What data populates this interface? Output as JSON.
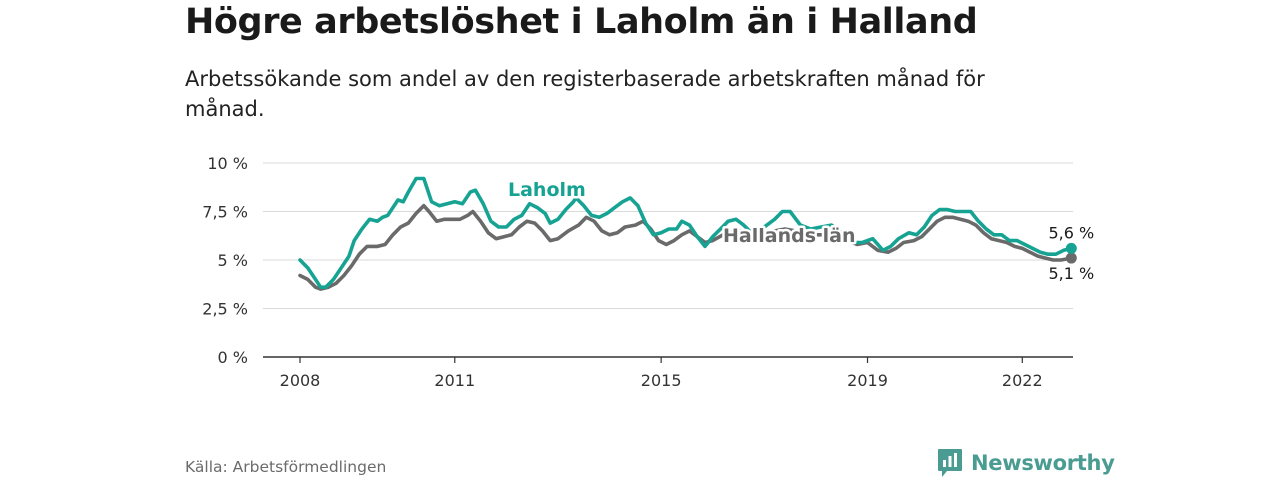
{
  "title": "Högre arbetslöshet i Laholm än i Halland",
  "subtitle": "Arbetssökande som andel av den registerbaserade arbetskraften månad för månad.",
  "source": "Källa: Arbetsförmedlingen",
  "brand": "Newsworthy",
  "colors": {
    "laholm": "#17a393",
    "halland": "#6b6a6b",
    "grid": "#d9d9d9",
    "axis": "#333333",
    "brand": "#4a9b91"
  },
  "chart_data": {
    "type": "line",
    "title": "Högre arbetslöshet i Laholm än i Halland",
    "xlabel": "",
    "ylabel": "",
    "xlim": [
      2008,
      2023.7
    ],
    "ylim": [
      0,
      10
    ],
    "y_ticks": [
      0,
      2.5,
      5,
      7.5,
      10
    ],
    "y_tick_labels": [
      "0 %",
      "2,5 %",
      "5 %",
      "7,5 %",
      "10 %"
    ],
    "x_ticks": [
      2008,
      2011,
      2015,
      2019,
      2022
    ],
    "x_tick_labels": [
      "2008",
      "2011",
      "2015",
      "2019",
      "2022"
    ],
    "grid": true,
    "legend": "inline labels",
    "series": [
      {
        "name": "Laholm",
        "color": "#17a393",
        "points": [
          [
            2008.0,
            5.0
          ],
          [
            2008.15,
            4.6
          ],
          [
            2008.3,
            4.0
          ],
          [
            2008.4,
            3.6
          ],
          [
            2008.5,
            3.6
          ],
          [
            2008.65,
            4.0
          ],
          [
            2008.8,
            4.6
          ],
          [
            2008.95,
            5.2
          ],
          [
            2009.05,
            6.0
          ],
          [
            2009.2,
            6.6
          ],
          [
            2009.35,
            7.1
          ],
          [
            2009.5,
            7.0
          ],
          [
            2009.6,
            7.2
          ],
          [
            2009.7,
            7.3
          ],
          [
            2009.8,
            7.7
          ],
          [
            2009.9,
            8.1
          ],
          [
            2010.0,
            8.0
          ],
          [
            2010.1,
            8.5
          ],
          [
            2010.25,
            9.2
          ],
          [
            2010.4,
            9.2
          ],
          [
            2010.55,
            8.0
          ],
          [
            2010.7,
            7.8
          ],
          [
            2010.85,
            7.9
          ],
          [
            2011.0,
            8.0
          ],
          [
            2011.15,
            7.9
          ],
          [
            2011.3,
            8.5
          ],
          [
            2011.4,
            8.6
          ],
          [
            2011.55,
            7.9
          ],
          [
            2011.7,
            7.0
          ],
          [
            2011.85,
            6.7
          ],
          [
            2012.0,
            6.7
          ],
          [
            2012.15,
            7.1
          ],
          [
            2012.3,
            7.3
          ],
          [
            2012.45,
            7.9
          ],
          [
            2012.6,
            7.7
          ],
          [
            2012.75,
            7.4
          ],
          [
            2012.85,
            6.9
          ],
          [
            2013.0,
            7.1
          ],
          [
            2013.15,
            7.6
          ],
          [
            2013.3,
            8.0
          ],
          [
            2013.35,
            8.2
          ],
          [
            2013.5,
            7.8
          ],
          [
            2013.65,
            7.3
          ],
          [
            2013.8,
            7.2
          ],
          [
            2013.95,
            7.4
          ],
          [
            2014.1,
            7.7
          ],
          [
            2014.25,
            8.0
          ],
          [
            2014.4,
            8.2
          ],
          [
            2014.55,
            7.8
          ],
          [
            2014.7,
            6.9
          ],
          [
            2014.85,
            6.3
          ],
          [
            2015.0,
            6.4
          ],
          [
            2015.15,
            6.6
          ],
          [
            2015.3,
            6.6
          ],
          [
            2015.4,
            7.0
          ],
          [
            2015.55,
            6.8
          ],
          [
            2015.7,
            6.2
          ],
          [
            2015.85,
            5.7
          ],
          [
            2016.0,
            6.2
          ],
          [
            2016.15,
            6.6
          ],
          [
            2016.3,
            7.0
          ],
          [
            2016.45,
            7.1
          ],
          [
            2016.6,
            6.8
          ],
          [
            2016.75,
            6.4
          ],
          [
            2016.9,
            6.5
          ],
          [
            2017.05,
            6.8
          ],
          [
            2017.2,
            7.1
          ],
          [
            2017.35,
            7.5
          ],
          [
            2017.5,
            7.5
          ],
          [
            2017.7,
            6.8
          ],
          [
            2017.9,
            6.6
          ],
          [
            2018.1,
            6.7
          ],
          [
            2018.3,
            6.8
          ],
          [
            2018.5,
            6.4
          ],
          [
            2018.7,
            5.9
          ],
          [
            2018.9,
            5.9
          ],
          [
            2019.1,
            6.1
          ],
          [
            2019.3,
            5.5
          ],
          [
            2019.45,
            5.7
          ],
          [
            2019.6,
            6.1
          ],
          [
            2019.8,
            6.4
          ],
          [
            2019.95,
            6.3
          ],
          [
            2020.1,
            6.7
          ],
          [
            2020.25,
            7.3
          ],
          [
            2020.4,
            7.6
          ],
          [
            2020.55,
            7.6
          ],
          [
            2020.7,
            7.5
          ],
          [
            2020.85,
            7.5
          ],
          [
            2021.0,
            7.5
          ],
          [
            2021.15,
            7.0
          ],
          [
            2021.3,
            6.6
          ],
          [
            2021.45,
            6.3
          ],
          [
            2021.6,
            6.3
          ],
          [
            2021.75,
            6.0
          ],
          [
            2021.9,
            6.0
          ],
          [
            2022.05,
            5.8
          ],
          [
            2022.2,
            5.6
          ],
          [
            2022.35,
            5.4
          ],
          [
            2022.5,
            5.3
          ],
          [
            2022.65,
            5.3
          ],
          [
            2022.8,
            5.5
          ],
          [
            2022.95,
            5.6
          ]
        ],
        "end_value": 5.6,
        "end_label": "5,6 %"
      },
      {
        "name": "Hallands län",
        "color": "#6b6a6b",
        "points": [
          [
            2008.0,
            4.2
          ],
          [
            2008.15,
            4.0
          ],
          [
            2008.3,
            3.6
          ],
          [
            2008.4,
            3.5
          ],
          [
            2008.55,
            3.6
          ],
          [
            2008.7,
            3.8
          ],
          [
            2008.85,
            4.2
          ],
          [
            2009.0,
            4.7
          ],
          [
            2009.15,
            5.3
          ],
          [
            2009.3,
            5.7
          ],
          [
            2009.5,
            5.7
          ],
          [
            2009.65,
            5.8
          ],
          [
            2009.8,
            6.3
          ],
          [
            2009.95,
            6.7
          ],
          [
            2010.1,
            6.9
          ],
          [
            2010.25,
            7.4
          ],
          [
            2010.4,
            7.8
          ],
          [
            2010.5,
            7.5
          ],
          [
            2010.65,
            7.0
          ],
          [
            2010.8,
            7.1
          ],
          [
            2010.95,
            7.1
          ],
          [
            2011.1,
            7.1
          ],
          [
            2011.25,
            7.3
          ],
          [
            2011.35,
            7.5
          ],
          [
            2011.5,
            7.0
          ],
          [
            2011.65,
            6.4
          ],
          [
            2011.8,
            6.1
          ],
          [
            2011.95,
            6.2
          ],
          [
            2012.1,
            6.3
          ],
          [
            2012.25,
            6.7
          ],
          [
            2012.4,
            7.0
          ],
          [
            2012.55,
            6.9
          ],
          [
            2012.7,
            6.5
          ],
          [
            2012.85,
            6.0
          ],
          [
            2013.0,
            6.1
          ],
          [
            2013.2,
            6.5
          ],
          [
            2013.4,
            6.8
          ],
          [
            2013.55,
            7.2
          ],
          [
            2013.7,
            7.0
          ],
          [
            2013.85,
            6.5
          ],
          [
            2014.0,
            6.3
          ],
          [
            2014.15,
            6.4
          ],
          [
            2014.3,
            6.7
          ],
          [
            2014.5,
            6.8
          ],
          [
            2014.65,
            7.0
          ],
          [
            2014.8,
            6.6
          ],
          [
            2014.95,
            6.0
          ],
          [
            2015.1,
            5.8
          ],
          [
            2015.25,
            6.0
          ],
          [
            2015.4,
            6.3
          ],
          [
            2015.55,
            6.5
          ],
          [
            2015.7,
            6.2
          ],
          [
            2015.85,
            5.9
          ],
          [
            2016.0,
            6.0
          ],
          [
            2016.2,
            6.3
          ],
          [
            2016.4,
            6.5
          ],
          [
            2016.55,
            6.5
          ],
          [
            2016.7,
            6.2
          ],
          [
            2016.85,
            6.0
          ],
          [
            2017.0,
            6.1
          ],
          [
            2017.2,
            6.5
          ],
          [
            2017.4,
            6.6
          ],
          [
            2017.6,
            6.5
          ],
          [
            2017.8,
            6.3
          ],
          [
            2018.0,
            6.3
          ],
          [
            2018.2,
            6.3
          ],
          [
            2018.4,
            6.2
          ],
          [
            2018.6,
            6.0
          ],
          [
            2018.8,
            5.8
          ],
          [
            2019.0,
            5.9
          ],
          [
            2019.2,
            5.5
          ],
          [
            2019.4,
            5.4
          ],
          [
            2019.55,
            5.6
          ],
          [
            2019.7,
            5.9
          ],
          [
            2019.9,
            6.0
          ],
          [
            2020.05,
            6.2
          ],
          [
            2020.2,
            6.6
          ],
          [
            2020.35,
            7.0
          ],
          [
            2020.5,
            7.2
          ],
          [
            2020.65,
            7.2
          ],
          [
            2020.8,
            7.1
          ],
          [
            2020.95,
            7.0
          ],
          [
            2021.1,
            6.8
          ],
          [
            2021.25,
            6.4
          ],
          [
            2021.4,
            6.1
          ],
          [
            2021.55,
            6.0
          ],
          [
            2021.7,
            5.9
          ],
          [
            2021.85,
            5.7
          ],
          [
            2022.0,
            5.6
          ],
          [
            2022.15,
            5.4
          ],
          [
            2022.3,
            5.2
          ],
          [
            2022.45,
            5.1
          ],
          [
            2022.6,
            5.0
          ],
          [
            2022.75,
            5.0
          ],
          [
            2022.95,
            5.1
          ]
        ],
        "end_value": 5.1,
        "end_label": "5,1 %"
      }
    ]
  }
}
